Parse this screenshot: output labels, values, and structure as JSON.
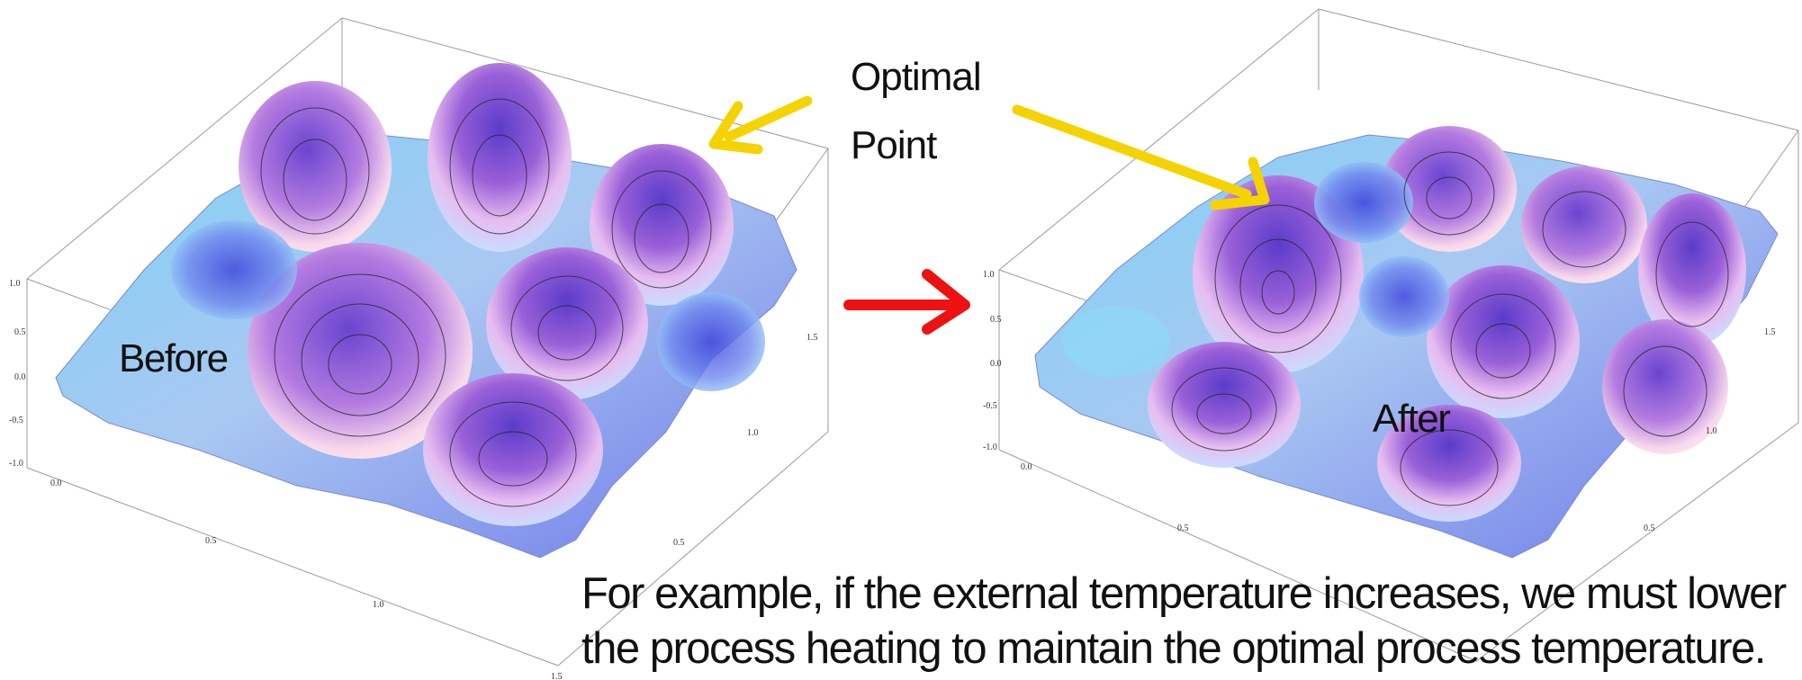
{
  "annotation": {
    "optimal_label_line1": "Optimal",
    "optimal_label_line2": "Point",
    "before_label": "Before",
    "after_label": "After"
  },
  "caption": {
    "line1": "For example, if the external temperature increases, we must lower",
    "line2": "the process heating to maintain the optimal process temperature."
  },
  "plots": [
    {
      "name": "before",
      "z_ticks": [
        "1.0",
        "0.5",
        "0.0",
        "-0.5",
        "-1.0"
      ],
      "x_ticks": [
        "0.0",
        "0.5",
        "1.0",
        "1.5"
      ],
      "y_ticks": [
        "0.5",
        "1.0",
        "1.5"
      ]
    },
    {
      "name": "after",
      "z_ticks": [
        "1.0",
        "0.5",
        "0.0",
        "-0.5",
        "-1.0"
      ],
      "x_ticks": [
        "0.0",
        "0.5"
      ],
      "y_ticks": [
        "0.5",
        "1.0",
        "1.5"
      ]
    }
  ],
  "colors": {
    "arrow_yellow": "#f5d300",
    "arrow_red": "#ee1111",
    "surface_peak": "#8a4fd6",
    "surface_valley": "#8ed8f6",
    "surface_edge": "#ffe8d8"
  }
}
